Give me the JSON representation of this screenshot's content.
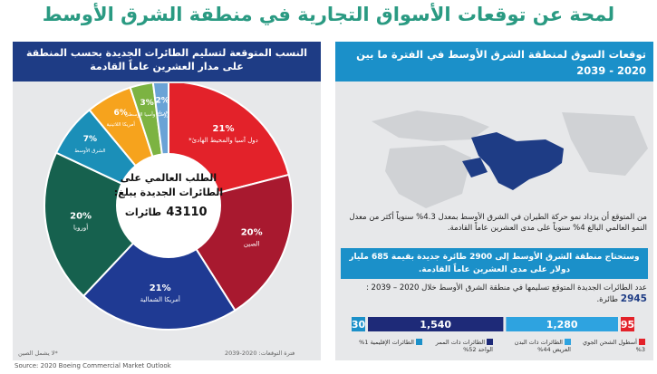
{
  "title": "لمحة عن توقعات الأسواق التجارية في منطقة الشرق الأوسط",
  "left_panel": {
    "header_line1": "النسب المتوقعة لتسليم الطائرات الجديدة بحسب المنطقة",
    "header_line2": "على مدار العشرين عاماً القادمة",
    "center_line1": "الطلب العالمي على",
    "center_line2": "الطائرات الجديدة يبلغ:",
    "center_value": "43110",
    "center_unit": "طائرات",
    "footnote_left": "*لا يشمل الصين",
    "footnote_right": "فترة التوقعات: 2020-2039"
  },
  "chart_data": {
    "type": "pie",
    "categories": [
      "دول آسيا والمحيط الهادئ*",
      "الصين",
      "أمريكا الشمالية",
      "أوروبا",
      "الشرق الأوسط",
      "أمريكا اللاتينية",
      "روسيا وآسيا الوسطى",
      "أفريقيا"
    ],
    "values": [
      21,
      20,
      21,
      20,
      7,
      6,
      3,
      2
    ],
    "labels": [
      "21%",
      "20%",
      "21%",
      "20%",
      "7%",
      "6%",
      "3%",
      "2%"
    ],
    "colors": [
      "#e3222a",
      "#a8192f",
      "#1f3a93",
      "#16614e",
      "#1b8fb8",
      "#f6a31d",
      "#7cb342",
      "#6aa3d6"
    ]
  },
  "right_panel": {
    "header_line1": "توقعات السوق لمنطقة الشرق الأوسط في الفترة ما بين",
    "header_line2": "2020 - 2039",
    "para1": "من المتوقع أن يزداد نمو حركة الطيران في الشرق الأوسط بمعدل 4.3% سنوياً أكثر من معدل النمو العالمي البالغ 4% سنوياً على مدى العشرين عاماً القادمة.",
    "bluebox": "وستحتاج منطقة الشرق الأوسط إلى 2900 طائرة جديدة بقيمة 685 مليار دولار على مدى العشرين عاماً القادمة.",
    "para2_text": "عدد الطائرات الجديدة المتوقع تسليمها في منطقة الشرق الأوسط خلال 2020 – 2039 :",
    "para2_value": "2945",
    "para2_unit": "طائرة."
  },
  "deliveries": {
    "segments": [
      {
        "label": "الطائرات الإقليمية 1%",
        "value": 30,
        "color": "#1b90c9"
      },
      {
        "label": "الطائرات ذات الممر الواحد 52%",
        "value": 1540,
        "color": "#1e2a78"
      },
      {
        "label": "الطائرات ذات البدن العريض 44%",
        "value": 1280,
        "color": "#2ea3e0"
      },
      {
        "label": "أسطول الشحن الجوي 3%",
        "value": 95,
        "color": "#e3222a"
      }
    ],
    "display": [
      "30",
      "1,540",
      "1,280",
      "95"
    ]
  },
  "source": "Source: 2020 Boeing Commercial Market Outlook"
}
